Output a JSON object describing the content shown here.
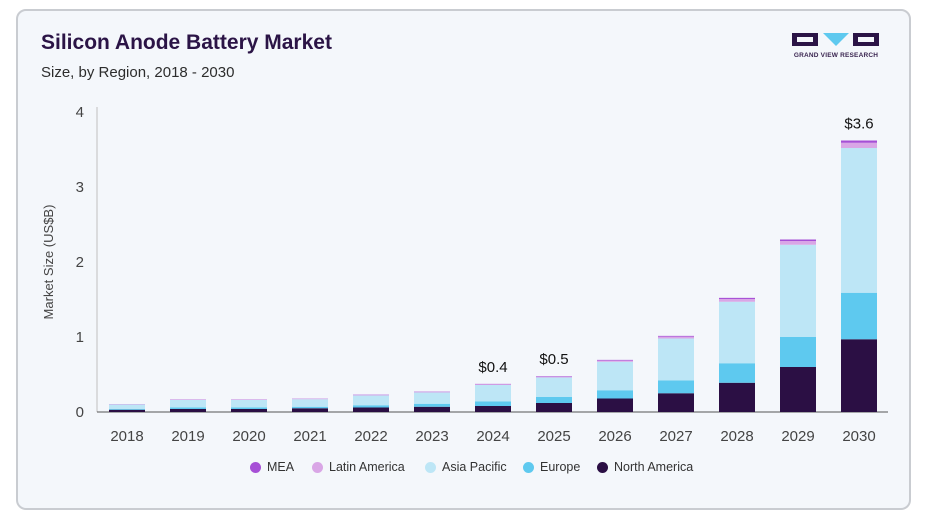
{
  "title": "Silicon Anode Battery Market",
  "subtitle": "Size, by Region, 2018 - 2030",
  "logo_text": "GRAND VIEW RESEARCH",
  "chart_data": {
    "type": "bar",
    "stacked": true,
    "ylabel": "Market Size (US$B)",
    "ylim": [
      0,
      4
    ],
    "yticks": [
      0,
      1,
      2,
      3,
      4
    ],
    "categories": [
      "2018",
      "2019",
      "2020",
      "2021",
      "2022",
      "2023",
      "2024",
      "2025",
      "2026",
      "2027",
      "2028",
      "2029",
      "2030"
    ],
    "series": [
      {
        "name": "North America",
        "color": "#2b0f44",
        "values": [
          0.03,
          0.04,
          0.04,
          0.05,
          0.06,
          0.07,
          0.08,
          0.12,
          0.18,
          0.25,
          0.39,
          0.6,
          0.97
        ]
      },
      {
        "name": "Europe",
        "color": "#5ec9ef",
        "values": [
          0.01,
          0.02,
          0.02,
          0.02,
          0.03,
          0.04,
          0.06,
          0.08,
          0.11,
          0.17,
          0.26,
          0.4,
          0.62
        ]
      },
      {
        "name": "Asia Pacific",
        "color": "#bde6f6",
        "values": [
          0.06,
          0.1,
          0.1,
          0.1,
          0.13,
          0.15,
          0.22,
          0.26,
          0.38,
          0.56,
          0.82,
          1.23,
          1.93
        ]
      },
      {
        "name": "Latin America",
        "color": "#d9a6e6",
        "values": [
          0.004,
          0.005,
          0.005,
          0.006,
          0.007,
          0.008,
          0.01,
          0.012,
          0.017,
          0.025,
          0.037,
          0.05,
          0.07
        ]
      },
      {
        "name": "MEA",
        "color": "#a64fd6",
        "values": [
          0.002,
          0.003,
          0.003,
          0.003,
          0.004,
          0.004,
          0.005,
          0.006,
          0.008,
          0.01,
          0.015,
          0.02,
          0.03
        ]
      }
    ],
    "annotations": [
      {
        "category": "2024",
        "text": "$0.4"
      },
      {
        "category": "2025",
        "text": "$0.5"
      },
      {
        "category": "2030",
        "text": "$3.6"
      }
    ],
    "legend": {
      "position": "bottom",
      "order": [
        "MEA",
        "Latin America",
        "Asia Pacific",
        "Europe",
        "North America"
      ]
    }
  }
}
